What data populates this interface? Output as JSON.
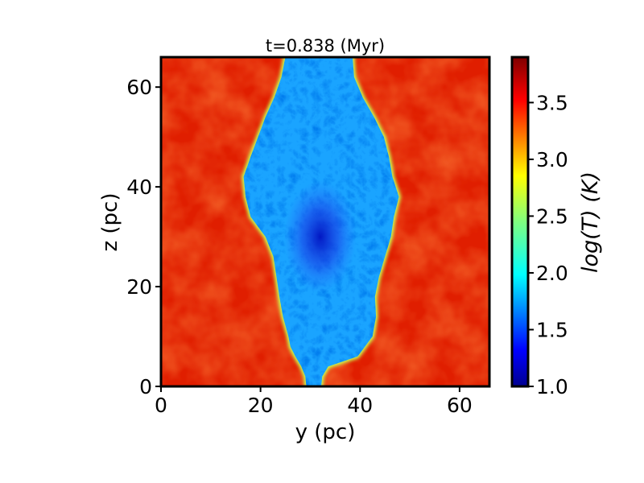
{
  "chart_data": {
    "type": "heatmap",
    "title": "t=0.838 (Myr)",
    "xlabel": "y (pc)",
    "ylabel": "z (pc)",
    "xlim": [
      0,
      66
    ],
    "ylim": [
      0,
      66
    ],
    "xticks": [
      0,
      20,
      40,
      60
    ],
    "yticks": [
      0,
      20,
      40,
      60
    ],
    "grid": false,
    "colorbar": {
      "label": "log(T) (K)",
      "range": [
        1.0,
        3.9
      ],
      "ticks": [
        "1.0",
        "1.5",
        "2.0",
        "2.5",
        "3.0",
        "3.5"
      ],
      "tick_values": [
        1.0,
        1.5,
        2.0,
        2.5,
        3.0,
        3.5
      ],
      "colormap": "jet"
    },
    "field": {
      "background_logT": 3.75,
      "cloud_logT_range": [
        1.3,
        2.3
      ],
      "cloud_boundary": [
        [
          0.2,
          29.2
        ],
        [
          2.0,
          29.0
        ],
        [
          4.0,
          28.2
        ],
        [
          6.0,
          27.0
        ],
        [
          8.0,
          26.0
        ],
        [
          10.0,
          25.6
        ],
        [
          14.0,
          24.5
        ],
        [
          18.0,
          23.8
        ],
        [
          22.0,
          23.2
        ],
        [
          26.0,
          22.6
        ],
        [
          30.0,
          21.0
        ],
        [
          34.0,
          18.0
        ],
        [
          38.0,
          17.0
        ],
        [
          42.0,
          16.6
        ],
        [
          46.0,
          18.0
        ],
        [
          50.0,
          19.5
        ],
        [
          54.0,
          21.0
        ],
        [
          58.0,
          22.8
        ],
        [
          62.0,
          24.2
        ],
        [
          66.0,
          25.0
        ],
        [
          66.0,
          38.5
        ],
        [
          62.0,
          38.8
        ],
        [
          58.0,
          40.5
        ],
        [
          54.0,
          42.8
        ],
        [
          50.0,
          44.8
        ],
        [
          46.0,
          45.8
        ],
        [
          42.0,
          46.5
        ],
        [
          38.0,
          47.8
        ],
        [
          34.0,
          46.8
        ],
        [
          30.0,
          46.2
        ],
        [
          26.0,
          45.0
        ],
        [
          22.0,
          43.8
        ],
        [
          18.0,
          43.0
        ],
        [
          14.0,
          43.2
        ],
        [
          10.0,
          42.5
        ],
        [
          8.0,
          41.0
        ],
        [
          6.0,
          39.5
        ],
        [
          4.0,
          33.6
        ],
        [
          2.0,
          32.4
        ],
        [
          0.2,
          32.2
        ]
      ],
      "cold_core_center": [
        32,
        30
      ]
    }
  }
}
